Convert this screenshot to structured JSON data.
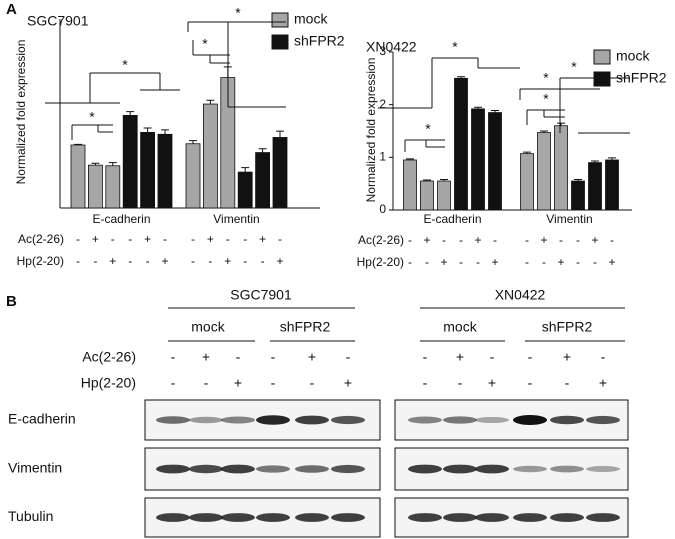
{
  "panel_a_label": "A",
  "panel_b_label": "B",
  "chart_data": [
    {
      "type": "bar",
      "title": "SGC7901",
      "y_label": "Normalized fold expression",
      "categories": [
        "E-cadherin",
        "Vimentin"
      ],
      "ylim": [
        0,
        3
      ],
      "series": [
        {
          "name": "mock",
          "color": "#a6a6a6",
          "values": [
            [
              1.0,
              0.68,
              0.67
            ],
            [
              1.02,
              1.65,
              2.07
            ]
          ],
          "errors": [
            [
              0.01,
              0.03,
              0.05
            ],
            [
              0.05,
              0.06,
              0.17
            ]
          ]
        },
        {
          "name": "shFPR2",
          "color": "#111111",
          "values": [
            [
              1.47,
              1.2,
              1.17
            ],
            [
              0.57,
              0.88,
              1.12
            ]
          ],
          "errors": [
            [
              0.06,
              0.07,
              0.07
            ],
            [
              0.07,
              0.06,
              0.1
            ]
          ]
        }
      ],
      "conditions": [
        {
          "label": "Ac(2-26)",
          "signs": [
            "-",
            "+",
            "-",
            "-",
            "+",
            "-"
          ]
        },
        {
          "label": "Hp(2-20)",
          "signs": [
            "-",
            "-",
            "+",
            "-",
            "-",
            "+"
          ]
        }
      ],
      "annotations": [
        "*",
        "*",
        "*",
        "*"
      ]
    },
    {
      "type": "bar",
      "title": "XN0422",
      "y_label": "Normalized fold expression",
      "categories": [
        "E-cadherin",
        "Vimentin"
      ],
      "ylim": [
        0,
        3
      ],
      "yticks": [
        0,
        1,
        2,
        3
      ],
      "series": [
        {
          "name": "mock",
          "color": "#a6a6a6",
          "values": [
            [
              0.95,
              0.55,
              0.55
            ],
            [
              1.07,
              1.47,
              1.6
            ]
          ],
          "errors": [
            [
              0.02,
              0.02,
              0.03
            ],
            [
              0.03,
              0.03,
              0.05
            ]
          ]
        },
        {
          "name": "shFPR2",
          "color": "#111111",
          "values": [
            [
              2.5,
              1.92,
              1.85
            ],
            [
              0.55,
              0.9,
              0.95
            ]
          ],
          "errors": [
            [
              0.03,
              0.03,
              0.04
            ],
            [
              0.03,
              0.03,
              0.04
            ]
          ]
        }
      ],
      "conditions": [
        {
          "label": "Ac(2-26)",
          "signs": [
            "-",
            "+",
            "-",
            "-",
            "+",
            "-"
          ]
        },
        {
          "label": "Hp(2-20)",
          "signs": [
            "-",
            "-",
            "+",
            "-",
            "-",
            "+"
          ]
        }
      ],
      "annotations": [
        "*",
        "*",
        "*",
        "*",
        "*"
      ]
    }
  ],
  "blots": [
    {
      "title": "SGC7901",
      "groups": [
        "mock",
        "shFPR2"
      ]
    },
    {
      "title": "XN0422",
      "groups": [
        "mock",
        "shFPR2"
      ]
    }
  ],
  "blot_conditions": [
    {
      "label": "Ac(2-26)",
      "signs": [
        "-",
        "+",
        "-",
        "-",
        "+",
        "-"
      ]
    },
    {
      "label": "Hp(2-20)",
      "signs": [
        "-",
        "-",
        "+",
        "-",
        "-",
        "+"
      ]
    }
  ],
  "blot_rows": [
    "E-cadherin",
    "Vimentin",
    "Tubulin"
  ]
}
